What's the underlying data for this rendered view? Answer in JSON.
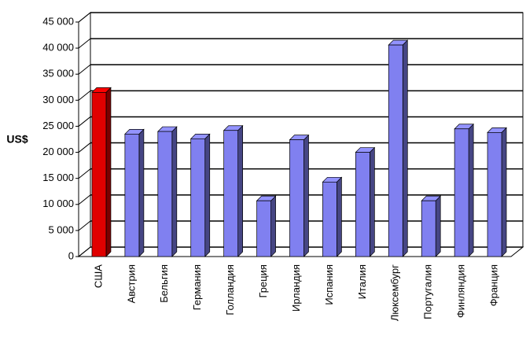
{
  "chart_data": {
    "type": "bar3d",
    "y_label": "US$",
    "categories": [
      "США",
      "Австрия",
      "Бельгия",
      "Германия",
      "Голландия",
      "Греция",
      "Ирландия",
      "Испания",
      "Италия",
      "Люксембург",
      "Португалия",
      "Финляндия",
      "Франция"
    ],
    "values": [
      31500,
      23500,
      24000,
      22600,
      24200,
      10700,
      22400,
      14300,
      20000,
      40600,
      10700,
      24500,
      23800
    ],
    "colors": [
      "#e00000",
      "#8080f0",
      "#8080f0",
      "#8080f0",
      "#8080f0",
      "#8080f0",
      "#8080f0",
      "#8080f0",
      "#8080f0",
      "#8080f0",
      "#8080f0",
      "#8080f0",
      "#8080f0"
    ],
    "ylim": [
      0,
      45000
    ],
    "yticks": [
      0,
      {
        "value": 5000,
        "label": "5 000"
      },
      {
        "value": 10000,
        "label": "10 000"
      },
      {
        "value": 15000,
        "label": "15 000"
      },
      {
        "value": 20000,
        "label": "20 000"
      },
      {
        "value": 25000,
        "label": "25 000"
      },
      {
        "value": 30000,
        "label": "30 000"
      },
      {
        "value": 35000,
        "label": "35 000"
      },
      {
        "value": 40000,
        "label": "40 000"
      },
      {
        "value": 45000,
        "label": "45 000"
      }
    ],
    "grid": true
  }
}
